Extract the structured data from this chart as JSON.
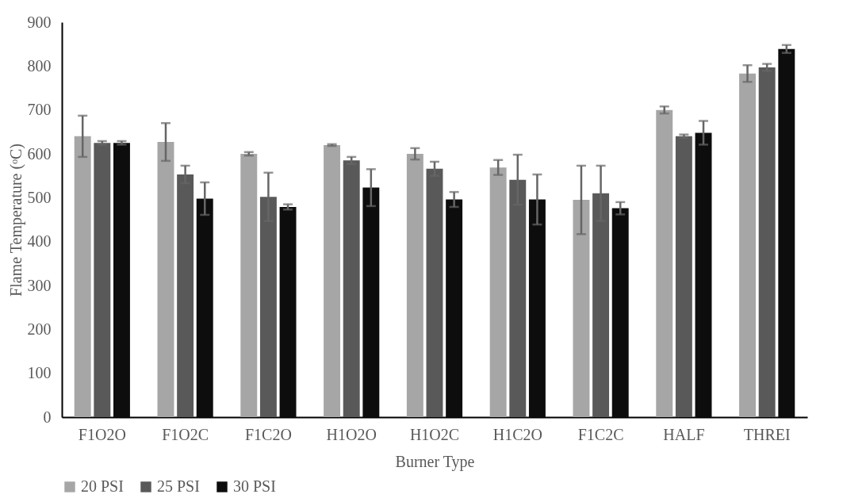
{
  "chart_data": {
    "type": "bar",
    "xlabel": "Burner Type",
    "ylabel": "Flame Temperature (ᵒC)",
    "categories": [
      "F1O2O",
      "F1O2C",
      "F1C2O",
      "H1O2O",
      "H1O2C",
      "H1C2O",
      "F1C2C",
      "HALF",
      "THREI"
    ],
    "series": [
      {
        "name": "20 PSI",
        "color": "#a6a6a6",
        "values": [
          640,
          627,
          600,
          620,
          600,
          569,
          495,
          700,
          783
        ],
        "errors": [
          47,
          43,
          4,
          2,
          13,
          17,
          78,
          8,
          19
        ]
      },
      {
        "name": "25 PSI",
        "color": "#595959",
        "values": [
          625,
          553,
          502,
          585,
          566,
          541,
          510,
          640,
          797
        ],
        "errors": [
          4,
          20,
          55,
          8,
          16,
          57,
          63,
          4,
          8
        ]
      },
      {
        "name": "30 PSI",
        "color": "#0d0d0d",
        "values": [
          625,
          498,
          479,
          523,
          496,
          496,
          476,
          648,
          839
        ],
        "errors": [
          4,
          37,
          6,
          42,
          17,
          57,
          14,
          27,
          9
        ]
      }
    ],
    "ylim": [
      0,
      900
    ],
    "yticks": [
      0,
      100,
      200,
      300,
      400,
      500,
      600,
      700,
      800,
      900
    ],
    "grid": false,
    "legend": "bottom left"
  }
}
